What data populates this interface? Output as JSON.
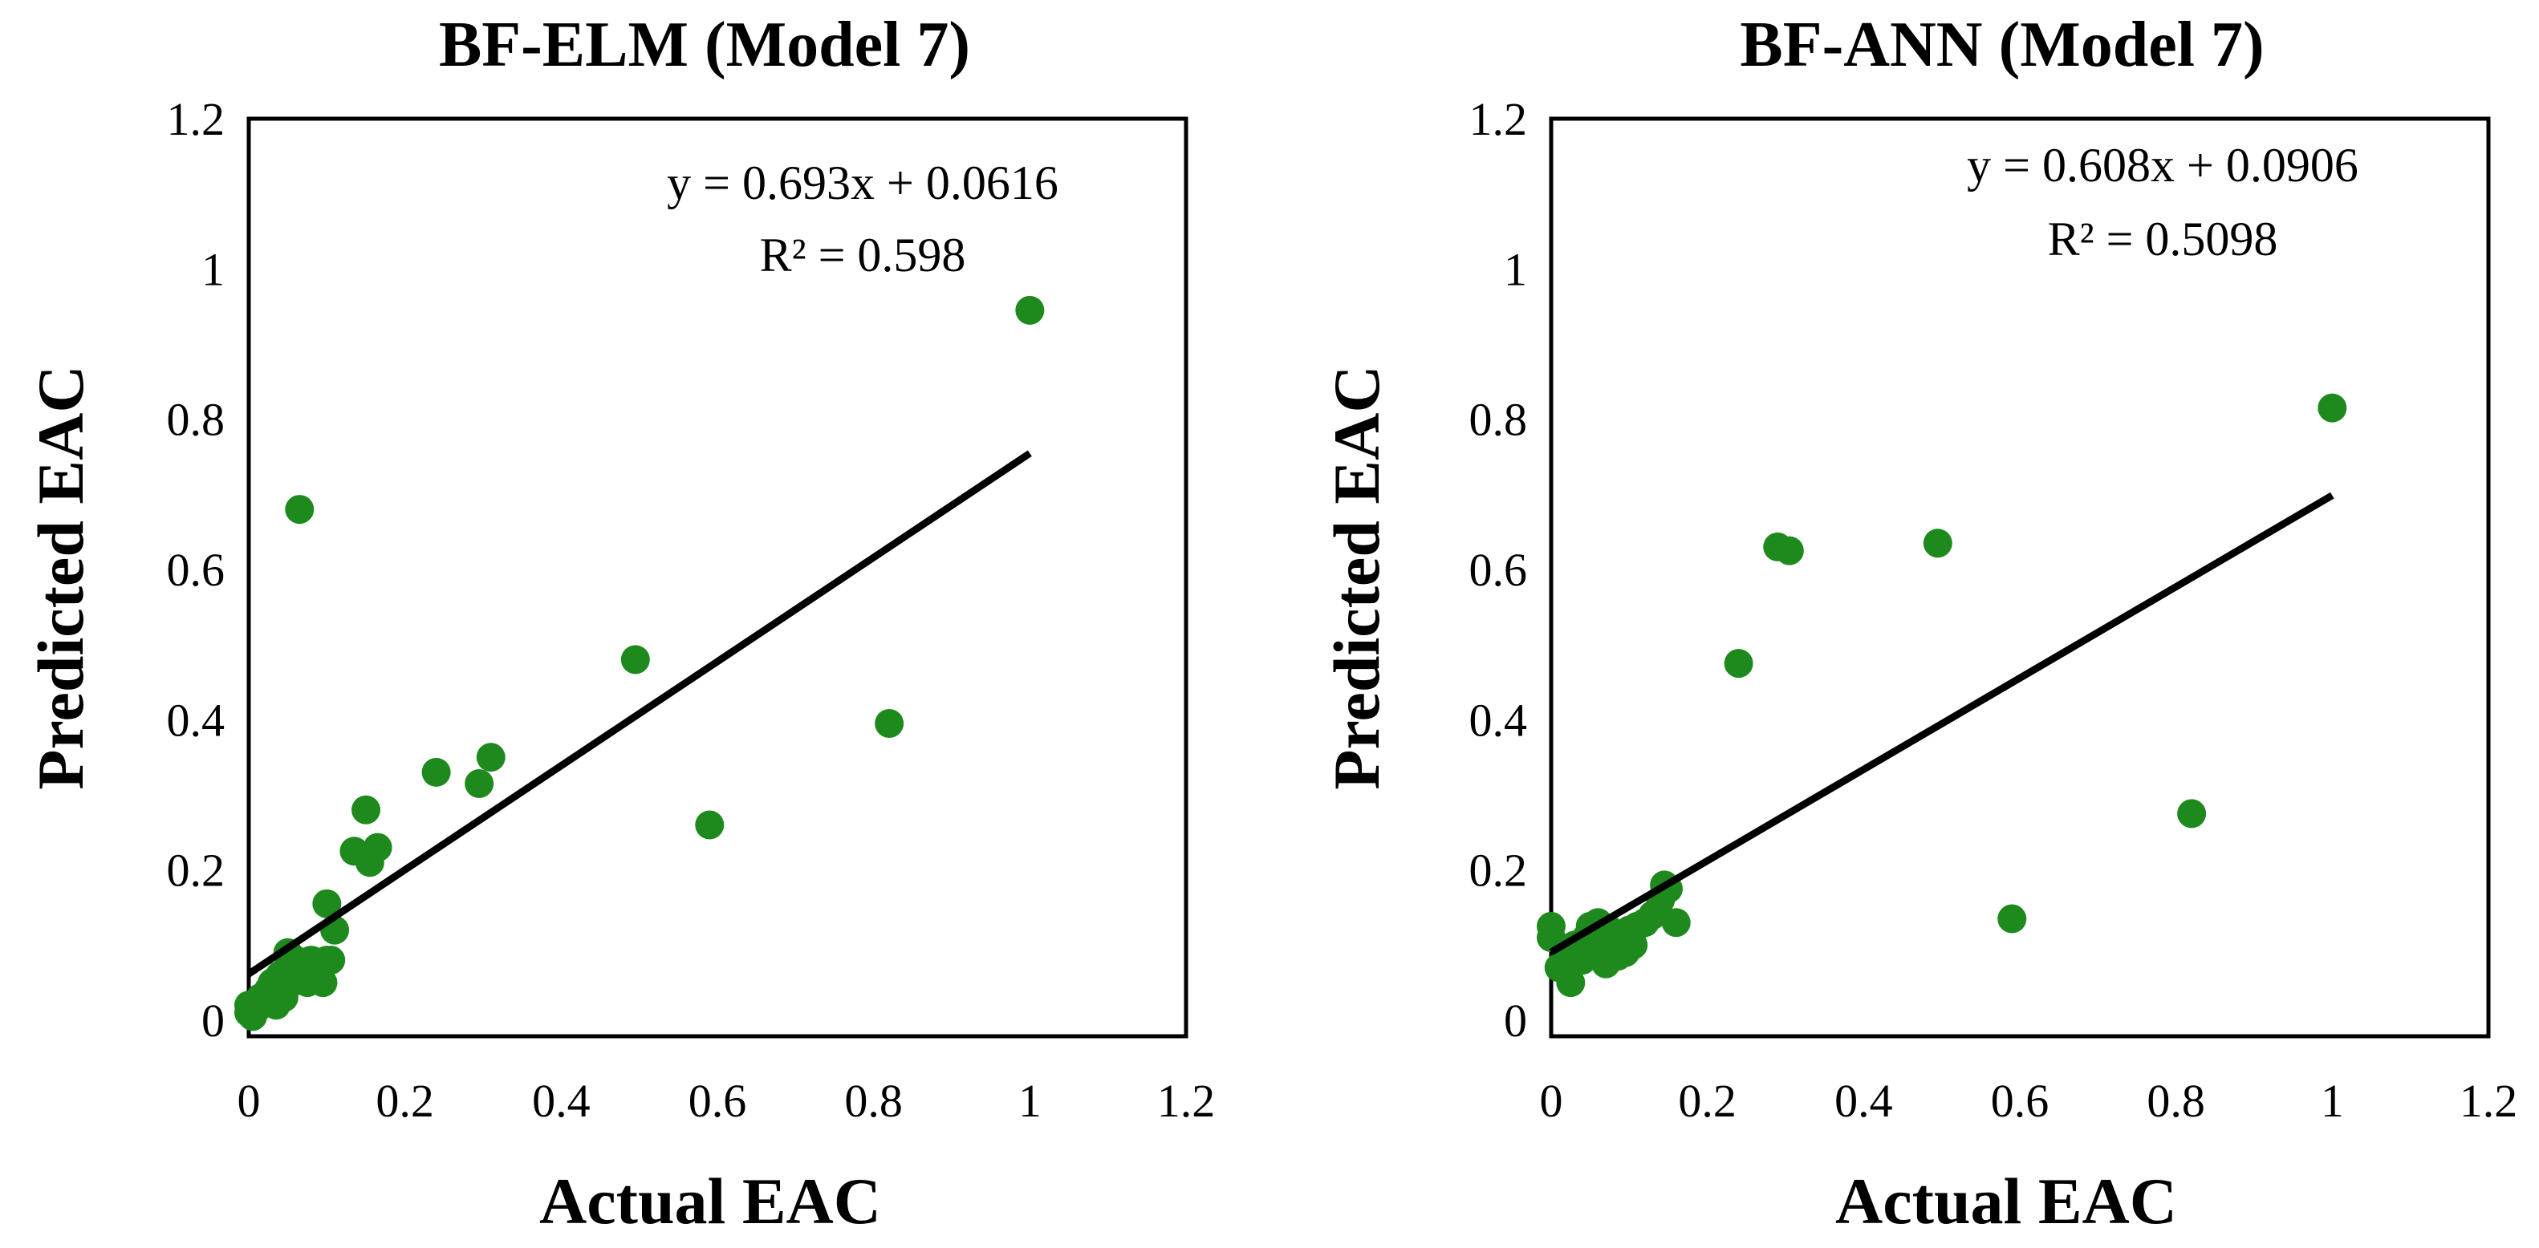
{
  "chart_data": [
    {
      "type": "scatter",
      "title": "BF-ELM (Model 7)",
      "xlabel": "Actual EAC",
      "ylabel": "Predicted EAC",
      "xlim": [
        0,
        1.2
      ],
      "ylim": [
        0,
        1.2
      ],
      "xticks": [
        "0",
        "0.2",
        "0.4",
        "0.6",
        "0.8",
        "1",
        "1.2"
      ],
      "yticks": [
        "0",
        "0.2",
        "0.4",
        "0.6",
        "0.8",
        "1",
        "1.2"
      ],
      "marker_color": "#1e8a1e",
      "trendline": {
        "slope": 0.693,
        "intercept": 0.0616,
        "x_range": [
          0,
          1
        ],
        "color": "#000000"
      },
      "equation": "y = 0.693x + 0.0616",
      "r_squared": "R² = 0.598",
      "points": [
        [
          0.0,
          0.01
        ],
        [
          0.0,
          0.02
        ],
        [
          0.005,
          0.005
        ],
        [
          0.01,
          0.015
        ],
        [
          0.015,
          0.03
        ],
        [
          0.02,
          0.025
        ],
        [
          0.025,
          0.04
        ],
        [
          0.03,
          0.05
        ],
        [
          0.035,
          0.02
        ],
        [
          0.04,
          0.06
        ],
        [
          0.045,
          0.03
        ],
        [
          0.05,
          0.07
        ],
        [
          0.05,
          0.09
        ],
        [
          0.055,
          0.05
        ],
        [
          0.06,
          0.08
        ],
        [
          0.065,
          0.06
        ],
        [
          0.07,
          0.07
        ],
        [
          0.075,
          0.05
        ],
        [
          0.08,
          0.08
        ],
        [
          0.085,
          0.06
        ],
        [
          0.09,
          0.07
        ],
        [
          0.095,
          0.05
        ],
        [
          0.1,
          0.08
        ],
        [
          0.105,
          0.08
        ],
        [
          0.1,
          0.155
        ],
        [
          0.11,
          0.12
        ],
        [
          0.065,
          0.68
        ],
        [
          0.135,
          0.225
        ],
        [
          0.15,
          0.28
        ],
        [
          0.155,
          0.21
        ],
        [
          0.165,
          0.23
        ],
        [
          0.24,
          0.33
        ],
        [
          0.295,
          0.315
        ],
        [
          0.31,
          0.35
        ],
        [
          0.495,
          0.48
        ],
        [
          0.59,
          0.26
        ],
        [
          0.82,
          0.395
        ],
        [
          1.0,
          0.945
        ]
      ]
    },
    {
      "type": "scatter",
      "title": "BF-ANN (Model 7)",
      "xlabel": "Actual EAC",
      "ylabel": "Predicted EAC",
      "xlim": [
        0,
        1.2
      ],
      "ylim": [
        0,
        1.2
      ],
      "xticks": [
        "0",
        "0.2",
        "0.4",
        "0.6",
        "0.8",
        "1",
        "1.2"
      ],
      "yticks": [
        "0",
        "0.2",
        "0.4",
        "0.6",
        "0.8",
        "1",
        "1.2"
      ],
      "marker_color": "#1e8a1e",
      "trendline": {
        "slope": 0.608,
        "intercept": 0.0906,
        "x_range": [
          0,
          1
        ],
        "color": "#000000"
      },
      "equation": "y = 0.608x + 0.0906",
      "r_squared": "R² = 0.5098",
      "points": [
        [
          0.0,
          0.11
        ],
        [
          0.0,
          0.125
        ],
        [
          0.01,
          0.07
        ],
        [
          0.02,
          0.09
        ],
        [
          0.025,
          0.05
        ],
        [
          0.03,
          0.1
        ],
        [
          0.04,
          0.08
        ],
        [
          0.045,
          0.11
        ],
        [
          0.05,
          0.125
        ],
        [
          0.055,
          0.09
        ],
        [
          0.06,
          0.13
        ],
        [
          0.065,
          0.1
        ],
        [
          0.07,
          0.075
        ],
        [
          0.075,
          0.12
        ],
        [
          0.08,
          0.1
        ],
        [
          0.085,
          0.085
        ],
        [
          0.09,
          0.11
        ],
        [
          0.095,
          0.09
        ],
        [
          0.1,
          0.12
        ],
        [
          0.105,
          0.1
        ],
        [
          0.11,
          0.125
        ],
        [
          0.12,
          0.13
        ],
        [
          0.13,
          0.14
        ],
        [
          0.14,
          0.16
        ],
        [
          0.145,
          0.18
        ],
        [
          0.15,
          0.175
        ],
        [
          0.16,
          0.13
        ],
        [
          0.24,
          0.475
        ],
        [
          0.29,
          0.63
        ],
        [
          0.305,
          0.625
        ],
        [
          0.495,
          0.635
        ],
        [
          0.59,
          0.135
        ],
        [
          0.82,
          0.275
        ],
        [
          1.0,
          0.815
        ]
      ]
    }
  ]
}
